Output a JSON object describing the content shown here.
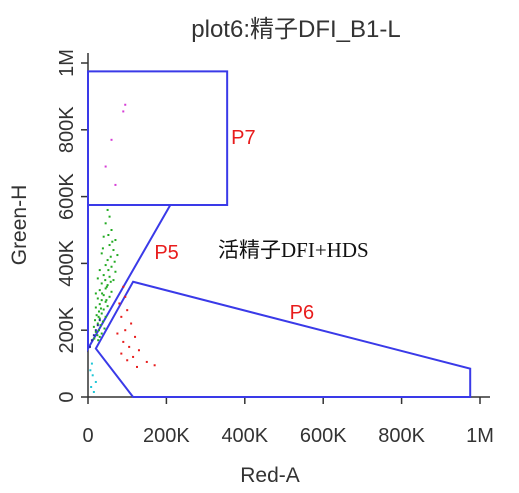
{
  "chart_data": {
    "type": "scatter",
    "title": "plot6:精子DFI_B1-L",
    "xlabel": "Red-A",
    "ylabel": "Green-H",
    "xlim": [
      0,
      1000000
    ],
    "ylim": [
      0,
      1000000
    ],
    "x_ticks": [
      {
        "value": 0,
        "label": "0"
      },
      {
        "value": 200000,
        "label": "200K"
      },
      {
        "value": 400000,
        "label": "400K"
      },
      {
        "value": 600000,
        "label": "600K"
      },
      {
        "value": 800000,
        "label": "800K"
      },
      {
        "value": 1000000,
        "label": "1M"
      }
    ],
    "y_ticks": [
      {
        "value": 0,
        "label": "0"
      },
      {
        "value": 200000,
        "label": "200K"
      },
      {
        "value": 400000,
        "label": "400K"
      },
      {
        "value": 600000,
        "label": "600K"
      },
      {
        "value": 800000,
        "label": "800K"
      },
      {
        "value": 1000000,
        "label": "1M"
      }
    ],
    "annotation": "活精子DFI+HDS",
    "gate_color": "#3a3ae8",
    "gate_label_color": "#e81c1c",
    "gates": [
      {
        "name": "P7",
        "vertices": [
          [
            0,
            975000
          ],
          [
            355000,
            975000
          ],
          [
            355000,
            575000
          ],
          [
            0,
            575000
          ]
        ]
      },
      {
        "name": "P5",
        "vertices": [
          [
            0,
            575000
          ],
          [
            210000,
            575000
          ],
          [
            0,
            145000
          ]
        ]
      },
      {
        "name": "P6",
        "vertices": [
          [
            115000,
            345000
          ],
          [
            975000,
            85000
          ],
          [
            975000,
            0
          ],
          [
            115000,
            0
          ],
          [
            20000,
            145000
          ]
        ]
      }
    ],
    "series": [
      {
        "color": "#22aa22",
        "points": [
          [
            50000,
            560000
          ],
          [
            55000,
            540000
          ],
          [
            45000,
            520000
          ],
          [
            60000,
            500000
          ],
          [
            70000,
            470000
          ],
          [
            40000,
            480000
          ],
          [
            55000,
            455000
          ],
          [
            65000,
            440000
          ],
          [
            35000,
            430000
          ],
          [
            75000,
            425000
          ],
          [
            50000,
            410000
          ],
          [
            45000,
            395000
          ],
          [
            60000,
            390000
          ],
          [
            30000,
            380000
          ],
          [
            70000,
            375000
          ],
          [
            40000,
            365000
          ],
          [
            55000,
            360000
          ],
          [
            25000,
            355000
          ],
          [
            65000,
            350000
          ],
          [
            35000,
            340000
          ],
          [
            50000,
            335000
          ],
          [
            45000,
            325000
          ],
          [
            30000,
            320000
          ],
          [
            60000,
            315000
          ],
          [
            20000,
            310000
          ],
          [
            40000,
            305000
          ],
          [
            55000,
            300000
          ],
          [
            25000,
            295000
          ],
          [
            35000,
            290000
          ],
          [
            45000,
            285000
          ],
          [
            30000,
            278000
          ],
          [
            50000,
            272000
          ],
          [
            20000,
            268000
          ],
          [
            40000,
            262000
          ],
          [
            28000,
            256000
          ],
          [
            35000,
            250000
          ],
          [
            22000,
            245000
          ],
          [
            45000,
            240000
          ],
          [
            30000,
            235000
          ],
          [
            18000,
            230000
          ],
          [
            38000,
            226000
          ],
          [
            25000,
            220000
          ],
          [
            32000,
            215000
          ],
          [
            15000,
            210000
          ],
          [
            42000,
            205000
          ],
          [
            28000,
            200000
          ],
          [
            20000,
            195000
          ],
          [
            35000,
            190000
          ],
          [
            24000,
            185000
          ],
          [
            30000,
            180000
          ],
          [
            16000,
            175000
          ],
          [
            26000,
            170000
          ],
          [
            48000,
            330000
          ],
          [
            58000,
            345000
          ],
          [
            62000,
            465000
          ],
          [
            52000,
            485000
          ],
          [
            38000,
            445000
          ],
          [
            68000,
            405000
          ],
          [
            44000,
            350000
          ],
          [
            36000,
            310000
          ],
          [
            52000,
            380000
          ],
          [
            47000,
            290000
          ],
          [
            33000,
            265000
          ],
          [
            27000,
            240000
          ],
          [
            58000,
            420000
          ]
        ]
      },
      {
        "color": "#e81c1c",
        "points": [
          [
            90000,
            330000
          ],
          [
            95000,
            300000
          ],
          [
            80000,
            280000
          ],
          [
            100000,
            260000
          ],
          [
            85000,
            240000
          ],
          [
            110000,
            220000
          ],
          [
            95000,
            200000
          ],
          [
            75000,
            190000
          ],
          [
            120000,
            180000
          ],
          [
            90000,
            165000
          ],
          [
            105000,
            150000
          ],
          [
            130000,
            140000
          ],
          [
            85000,
            130000
          ],
          [
            115000,
            120000
          ],
          [
            170000,
            95000
          ],
          [
            150000,
            105000
          ],
          [
            100000,
            110000
          ],
          [
            125000,
            90000
          ]
        ]
      },
      {
        "color": "#d63cd6",
        "points": [
          [
            95000,
            875000
          ],
          [
            90000,
            855000
          ],
          [
            60000,
            770000
          ],
          [
            45000,
            690000
          ],
          [
            70000,
            635000
          ]
        ]
      },
      {
        "color": "#20c6d6",
        "points": [
          [
            8000,
            30000
          ],
          [
            12000,
            65000
          ],
          [
            20000,
            45000
          ],
          [
            6000,
            80000
          ],
          [
            15000,
            15000
          ],
          [
            10000,
            100000
          ]
        ]
      },
      {
        "color": "#2a2a9a",
        "points": [
          [
            5000,
            150000
          ],
          [
            10000,
            170000
          ],
          [
            15000,
            185000
          ],
          [
            20000,
            200000
          ],
          [
            25000,
            215000
          ],
          [
            30000,
            230000
          ]
        ]
      }
    ]
  }
}
